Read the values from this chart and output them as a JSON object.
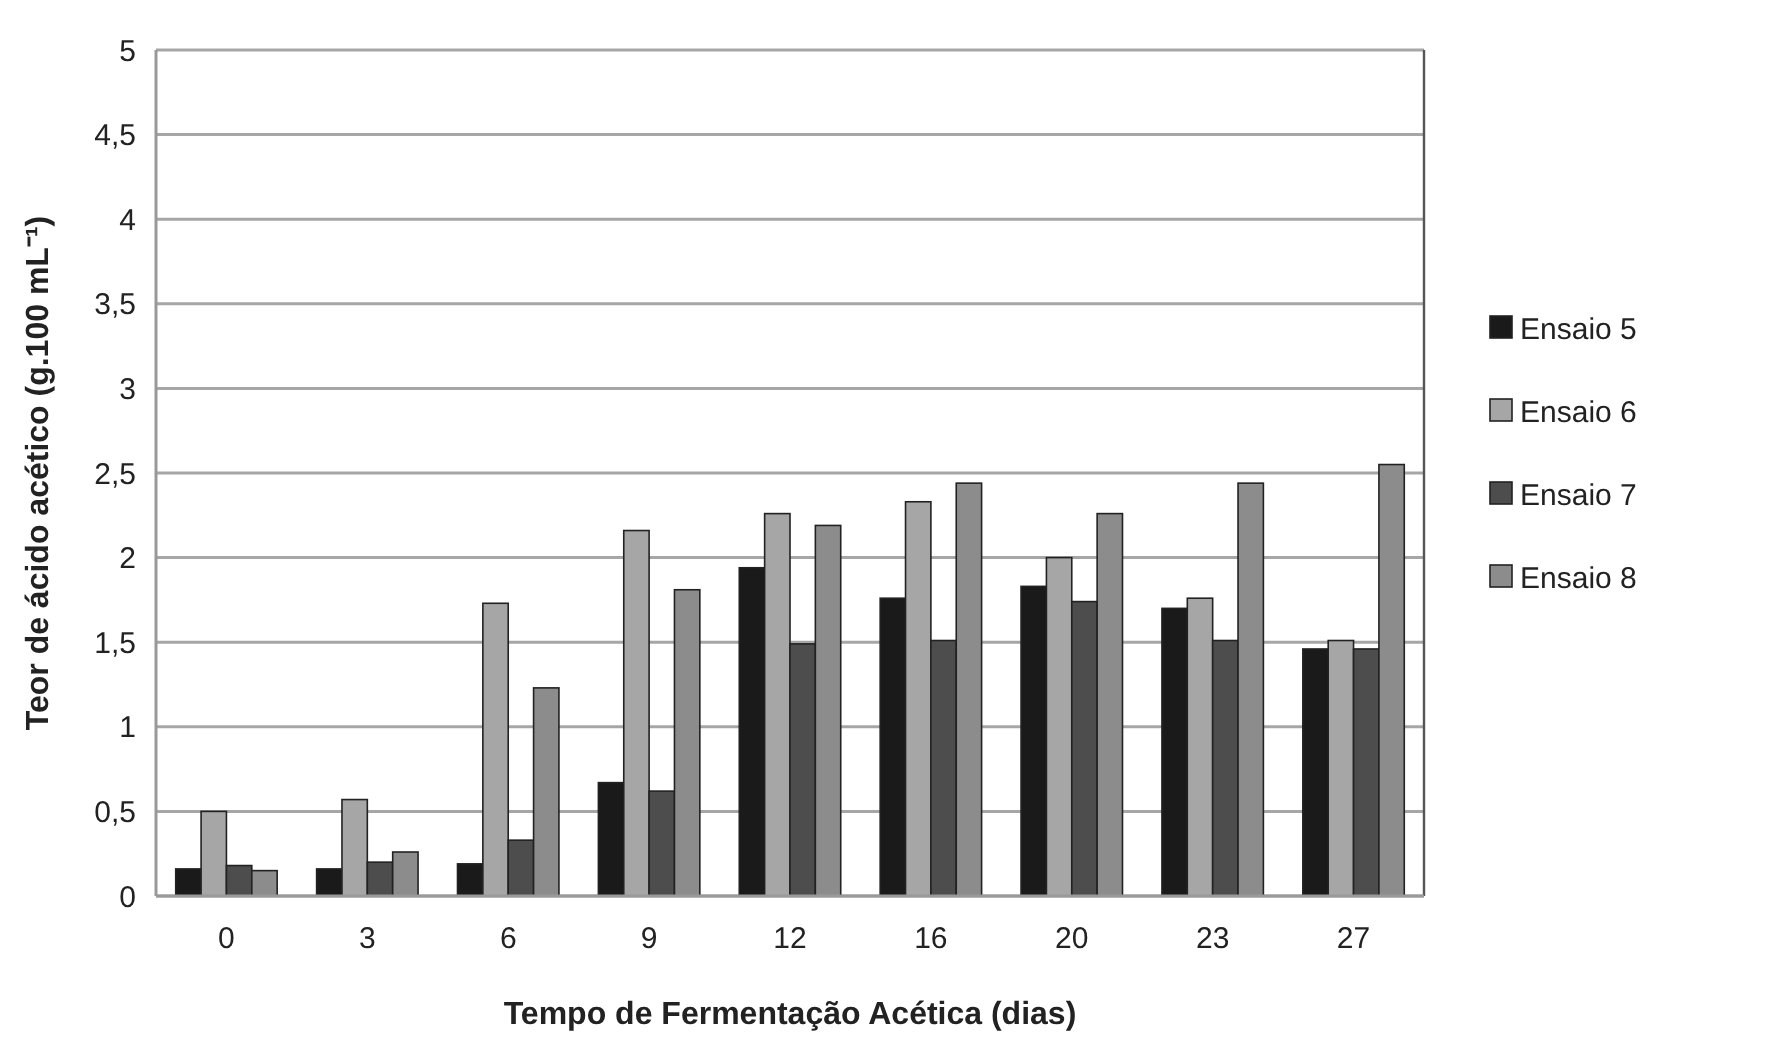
{
  "chart_data": {
    "type": "bar",
    "xlabel": "Tempo de Fermentação Acética (dias)",
    "ylabel": "Teor de ácido acético (g.100 mL⁻¹)",
    "categories": [
      "0",
      "3",
      "6",
      "9",
      "12",
      "16",
      "20",
      "23",
      "27"
    ],
    "series": [
      {
        "name": "Ensaio 5",
        "color": "#1a1a1a",
        "values": [
          0.16,
          0.16,
          0.19,
          0.67,
          1.94,
          1.76,
          1.83,
          1.7,
          1.46
        ]
      },
      {
        "name": "Ensaio 6",
        "color": "#a6a6a6",
        "values": [
          0.5,
          0.57,
          1.73,
          2.16,
          2.26,
          2.33,
          2.0,
          1.76,
          1.51
        ]
      },
      {
        "name": "Ensaio 7",
        "color": "#4d4d4d",
        "values": [
          0.18,
          0.2,
          0.33,
          0.62,
          1.49,
          1.51,
          1.74,
          1.51,
          1.46
        ]
      },
      {
        "name": "Ensaio 8",
        "color": "#8c8c8c",
        "values": [
          0.15,
          0.26,
          1.23,
          1.81,
          2.19,
          2.44,
          2.26,
          2.44,
          2.55
        ]
      }
    ],
    "ylim": [
      0,
      5
    ],
    "yticks": [
      0,
      {
        "value": 0.5,
        "label": "0,5"
      },
      1,
      {
        "value": 1.5,
        "label": "1,5"
      },
      2,
      {
        "value": 2.5,
        "label": "2,5"
      },
      3,
      {
        "value": 3.5,
        "label": "3,5"
      },
      4,
      {
        "value": 4.5,
        "label": "4,5"
      },
      5
    ],
    "grid": "y",
    "legend": "right"
  }
}
